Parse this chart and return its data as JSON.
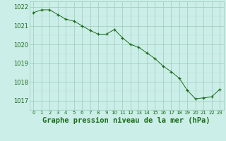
{
  "hours": [
    0,
    1,
    2,
    3,
    4,
    5,
    6,
    7,
    8,
    9,
    10,
    11,
    12,
    13,
    14,
    15,
    16,
    17,
    18,
    19,
    20,
    21,
    22,
    23
  ],
  "pressure": [
    1021.7,
    1021.85,
    1021.85,
    1021.6,
    1021.35,
    1021.25,
    1021.0,
    1020.75,
    1020.55,
    1020.55,
    1020.8,
    1020.35,
    1020.0,
    1019.85,
    1019.55,
    1019.25,
    1018.85,
    1018.55,
    1018.2,
    1017.55,
    1017.1,
    1017.15,
    1017.2,
    1017.6
  ],
  "line_color": "#1a6b1a",
  "marker": "+",
  "bg_color": "#cceee8",
  "grid_color_major": "#99ccbb",
  "grid_color_minor": "#bbddd8",
  "xlabel": "Graphe pression niveau de la mer (hPa)",
  "xlabel_fontsize": 7.5,
  "xlabel_color": "#1a6b1a",
  "tick_label_color": "#1a6b1a",
  "ylim": [
    1016.5,
    1022.3
  ],
  "yticks": [
    1017,
    1018,
    1019,
    1020,
    1021,
    1022
  ],
  "figsize": [
    3.2,
    2.0
  ],
  "dpi": 100
}
